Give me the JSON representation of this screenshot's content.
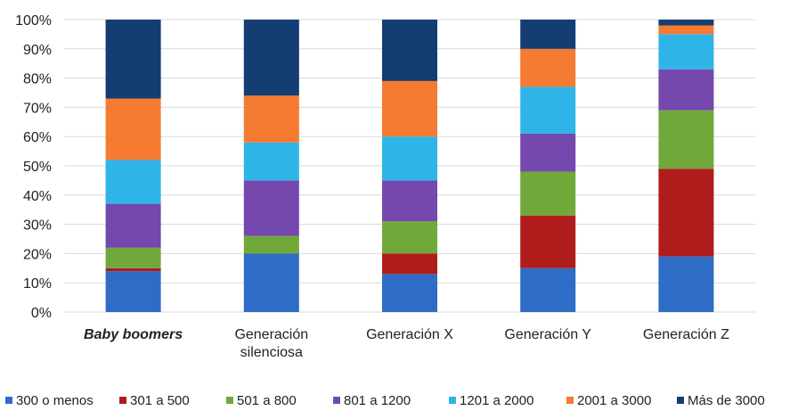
{
  "chart_data": {
    "type": "bar",
    "stacked": true,
    "title": "",
    "xlabel": "",
    "ylabel": "",
    "ylim": [
      0,
      100
    ],
    "yticks": [
      "0%",
      "10%",
      "20%",
      "30%",
      "40%",
      "50%",
      "60%",
      "70%",
      "80%",
      "90%",
      "100%"
    ],
    "grid": true,
    "legend_position": "bottom",
    "categories": [
      [
        "Baby boomers"
      ],
      [
        "Generación",
        "silenciosa"
      ],
      [
        "Generación X"
      ],
      [
        "Generación Y"
      ],
      [
        "Generación Z"
      ]
    ],
    "category_names": [
      "Baby boomers",
      "Generación silenciosa",
      "Generación X",
      "Generación Y",
      "Generación Z"
    ],
    "series": [
      {
        "name": "300 o menos",
        "color": "#2e6cc6",
        "values": [
          14,
          20,
          13,
          15,
          19
        ]
      },
      {
        "name": "301 a 500",
        "color": "#b01c1c",
        "values": [
          1,
          0,
          7,
          18,
          30
        ]
      },
      {
        "name": "501 a 800",
        "color": "#70a83a",
        "values": [
          7,
          6,
          11,
          15,
          20
        ]
      },
      {
        "name": "801 a 1200",
        "color": "#7448ad",
        "values": [
          15,
          19,
          14,
          13,
          14
        ]
      },
      {
        "name": "1201 a 2000",
        "color": "#2fb4e8",
        "values": [
          15,
          13,
          15,
          16,
          12
        ]
      },
      {
        "name": "2001 a 3000",
        "color": "#f57a32",
        "values": [
          21,
          16,
          19,
          13,
          3
        ]
      },
      {
        "name": "Más de 3000",
        "color": "#143d72",
        "values": [
          27,
          26,
          21,
          10,
          2
        ]
      }
    ]
  }
}
